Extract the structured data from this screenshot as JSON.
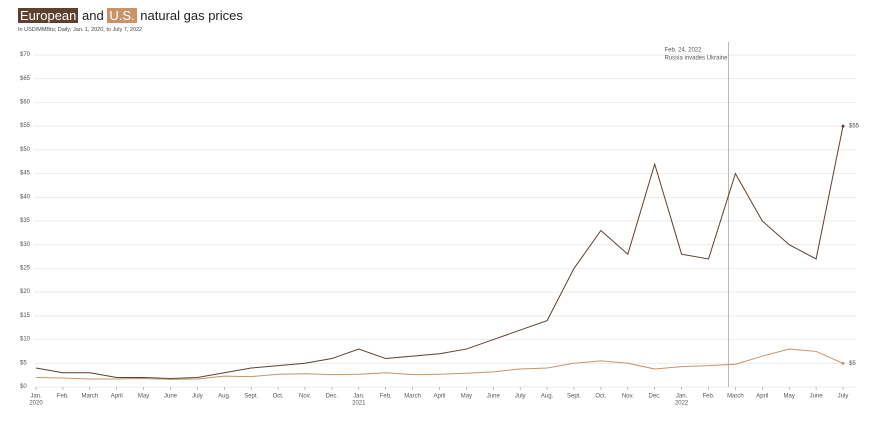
{
  "chart_data": {
    "type": "line",
    "title_parts": [
      "European",
      "and",
      "U.S.",
      "natural gas prices"
    ],
    "subtitle": "In USD/MMBtu; Daily; Jan. 1, 2020, to July 7, 2022",
    "x": [
      "2020-01",
      "2020-02",
      "2020-03",
      "2020-04",
      "2020-05",
      "2020-06",
      "2020-07",
      "2020-08",
      "2020-09",
      "2020-10",
      "2020-11",
      "2020-12",
      "2021-01",
      "2021-02",
      "2021-03",
      "2021-04",
      "2021-05",
      "2021-06",
      "2021-07",
      "2021-08",
      "2021-09",
      "2021-10",
      "2021-11",
      "2021-12",
      "2022-01",
      "2022-02",
      "2022-03",
      "2022-04",
      "2022-05",
      "2022-06",
      "2022-07"
    ],
    "series": [
      {
        "name": "European",
        "color": "#5c4130",
        "values": [
          4,
          3,
          3,
          2,
          2,
          1.8,
          2,
          3,
          4,
          4.5,
          5,
          6,
          8,
          6,
          6.5,
          7,
          8,
          10,
          12,
          14,
          25,
          33,
          28,
          47,
          28,
          27,
          45,
          35,
          30,
          27,
          55
        ],
        "end_label": "$55"
      },
      {
        "name": "U.S.",
        "color": "#c8936a",
        "values": [
          2,
          1.9,
          1.7,
          1.7,
          1.8,
          1.6,
          1.7,
          2.3,
          2.2,
          2.7,
          2.8,
          2.6,
          2.7,
          3,
          2.6,
          2.7,
          2.9,
          3.2,
          3.8,
          4,
          5,
          5.5,
          5,
          3.8,
          4.3,
          4.5,
          4.8,
          6.5,
          8,
          7.5,
          5
        ],
        "end_label": "$5"
      }
    ],
    "xlim": [
      "2020-01",
      "2022-07"
    ],
    "xticks": [
      {
        "value": "2020-01",
        "label": "Jan."
      },
      {
        "value": "2020-02",
        "label": "Feb."
      },
      {
        "value": "2020-03",
        "label": "March"
      },
      {
        "value": "2020-04",
        "label": "April"
      },
      {
        "value": "2020-05",
        "label": "May"
      },
      {
        "value": "2020-06",
        "label": "June"
      },
      {
        "value": "2020-07",
        "label": "July"
      },
      {
        "value": "2020-08",
        "label": "Aug."
      },
      {
        "value": "2020-09",
        "label": "Sept."
      },
      {
        "value": "2020-10",
        "label": "Oct."
      },
      {
        "value": "2020-11",
        "label": "Nov."
      },
      {
        "value": "2020-12",
        "label": "Dec."
      },
      {
        "value": "2021-01",
        "label": "Jan."
      },
      {
        "value": "2021-02",
        "label": "Feb."
      },
      {
        "value": "2021-03",
        "label": "March"
      },
      {
        "value": "2021-04",
        "label": "April"
      },
      {
        "value": "2021-05",
        "label": "May"
      },
      {
        "value": "2021-06",
        "label": "June"
      },
      {
        "value": "2021-07",
        "label": "July"
      },
      {
        "value": "2021-08",
        "label": "Aug."
      },
      {
        "value": "2021-09",
        "label": "Sept."
      },
      {
        "value": "2021-10",
        "label": "Oct."
      },
      {
        "value": "2021-11",
        "label": "Nov."
      },
      {
        "value": "2021-12",
        "label": "Dec."
      },
      {
        "value": "2022-01",
        "label": "Jan."
      },
      {
        "value": "2022-02",
        "label": "Feb."
      },
      {
        "value": "2022-03",
        "label": "March"
      },
      {
        "value": "2022-04",
        "label": "April"
      },
      {
        "value": "2022-05",
        "label": "May"
      },
      {
        "value": "2022-06",
        "label": "June"
      },
      {
        "value": "2022-07",
        "label": "July"
      }
    ],
    "x_year_labels": [
      {
        "value": "2020-01",
        "label": "2020"
      },
      {
        "value": "2021-01",
        "label": "2021"
      },
      {
        "value": "2022-01",
        "label": "2022"
      }
    ],
    "ylim": [
      0,
      70
    ],
    "yticks": [
      {
        "value": 0,
        "label": "$0"
      },
      {
        "value": 5,
        "label": "$5"
      },
      {
        "value": 10,
        "label": "$10"
      },
      {
        "value": 15,
        "label": "$15"
      },
      {
        "value": 20,
        "label": "$20"
      },
      {
        "value": 25,
        "label": "$25"
      },
      {
        "value": 30,
        "label": "$30"
      },
      {
        "value": 35,
        "label": "$35"
      },
      {
        "value": 40,
        "label": "$40"
      },
      {
        "value": 45,
        "label": "$45"
      },
      {
        "value": 50,
        "label": "$50"
      },
      {
        "value": 55,
        "label": "$55"
      },
      {
        "value": 60,
        "label": "$60"
      },
      {
        "value": 65,
        "label": "$65"
      },
      {
        "value": 70,
        "label": "$70"
      }
    ],
    "grid": true,
    "annotation": {
      "x": "2022-02-24",
      "date": "Feb. 24, 2022",
      "text": "Russia invades Ukraine"
    }
  }
}
